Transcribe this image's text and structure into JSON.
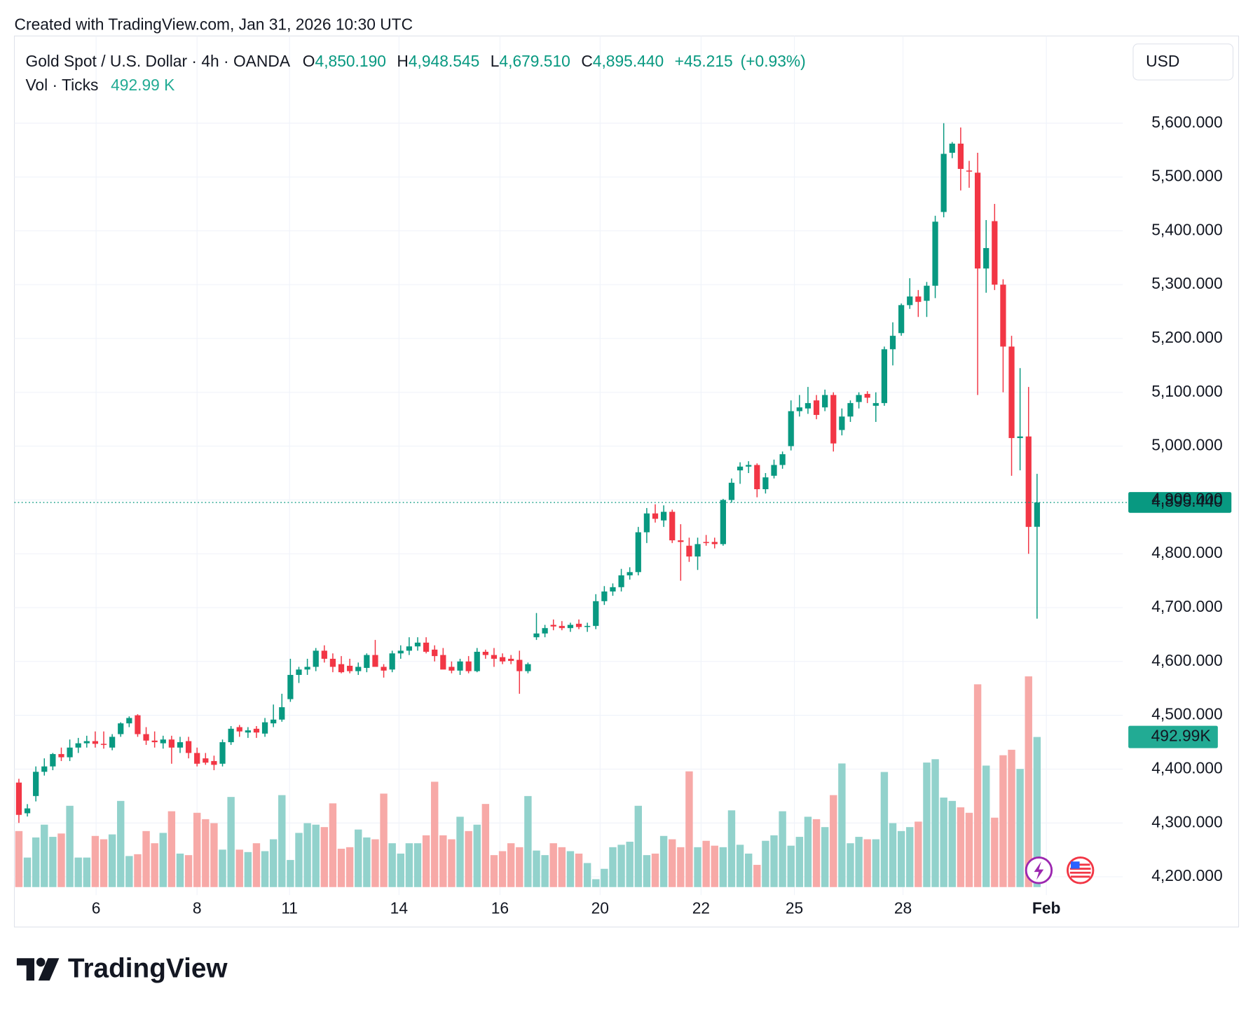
{
  "chart_data": {
    "type": "candlestick",
    "watermark": "Created with TradingView.com, Jan 31, 2026 10:30 UTC",
    "title": "Gold Spot / U.S. Dollar · 4h · OANDA",
    "ohlc_letters": [
      "O",
      "H",
      "L",
      "C"
    ],
    "ohlc_labels": [
      "4,850.190",
      "4,948.545",
      "4,679.510",
      "4,895.440"
    ],
    "change": 45.215,
    "change_label": "+45.215",
    "change_pct": 0.93,
    "change_pct_label": "(+0.93%)",
    "volume_name": "Vol · Ticks",
    "volume_labels": [
      "492.99 K",
      "492.99K"
    ],
    "currency": "USD",
    "brand": "TradingView",
    "last_price_label": "4,895.440",
    "up_color": "#089981",
    "down_color": "#f23645",
    "volume_up_color": "#92d2cc",
    "volume_down_color": "#f7a9a7",
    "grid": true,
    "ylim": [
      4166,
      5762
    ],
    "yticks": [
      {
        "value": 4200,
        "label": "4,200.000"
      },
      {
        "value": 4300,
        "label": "4,300.000"
      },
      {
        "value": 4400,
        "label": "4,400.000"
      },
      {
        "value": 4500,
        "label": "4,500.000"
      },
      {
        "value": 4600,
        "label": "4,600.000"
      },
      {
        "value": 4700,
        "label": "4,700.000"
      },
      {
        "value": 4800,
        "label": "4,800.000"
      },
      {
        "value": 4900,
        "label": "4,900.000"
      },
      {
        "value": 5000,
        "label": "5,000.000"
      },
      {
        "value": 5100,
        "label": "5,100.000"
      },
      {
        "value": 5200,
        "label": "5,200.000"
      },
      {
        "value": 5300,
        "label": "5,300.000"
      },
      {
        "value": 5400,
        "label": "5,400.000"
      },
      {
        "value": 5500,
        "label": "5,500.000"
      },
      {
        "value": 5600,
        "label": "5,600.000"
      }
    ],
    "xlim": [
      -0.53,
      130.1
    ],
    "xticks": [
      {
        "value": 9.1,
        "label": "6"
      },
      {
        "value": 21,
        "label": "8"
      },
      {
        "value": 31.9,
        "label": "11"
      },
      {
        "value": 44.8,
        "label": "14"
      },
      {
        "value": 56.7,
        "label": "16"
      },
      {
        "value": 68.5,
        "label": "20"
      },
      {
        "value": 80.4,
        "label": "22"
      },
      {
        "value": 91.4,
        "label": "25"
      },
      {
        "value": 104.2,
        "label": "28"
      },
      {
        "value": 121.1,
        "label": "Feb"
      }
    ],
    "volume_lim": [
      0,
      1000
    ],
    "candles": [
      [
        4375,
        4382,
        4300,
        4315
      ],
      [
        4318,
        4335,
        4312,
        4327
      ],
      [
        4350,
        4405,
        4340,
        4395
      ],
      [
        4395,
        4420,
        4388,
        4405
      ],
      [
        4405,
        4430,
        4398,
        4428
      ],
      [
        4428,
        4440,
        4415,
        4422
      ],
      [
        4422,
        4455,
        4415,
        4440
      ],
      [
        4440,
        4458,
        4430,
        4448
      ],
      [
        4448,
        4462,
        4440,
        4452
      ],
      [
        4452,
        4470,
        4440,
        4447
      ],
      [
        4447,
        4470,
        4438,
        4445
      ],
      [
        4440,
        4465,
        4435,
        4460
      ],
      [
        4465,
        4487,
        4460,
        4485
      ],
      [
        4485,
        4498,
        4478,
        4495
      ],
      [
        4500,
        4502,
        4460,
        4465
      ],
      [
        4465,
        4478,
        4445,
        4453
      ],
      [
        4453,
        4470,
        4440,
        4450
      ],
      [
        4448,
        4462,
        4438,
        4455
      ],
      [
        4455,
        4462,
        4410,
        4440
      ],
      [
        4440,
        4460,
        4430,
        4450
      ],
      [
        4452,
        4460,
        4420,
        4430
      ],
      [
        4430,
        4440,
        4405,
        4410
      ],
      [
        4420,
        4430,
        4408,
        4412
      ],
      [
        4415,
        4425,
        4398,
        4408
      ],
      [
        4410,
        4455,
        4405,
        4450
      ],
      [
        4450,
        4480,
        4445,
        4475
      ],
      [
        4478,
        4482,
        4460,
        4470
      ],
      [
        4468,
        4478,
        4458,
        4472
      ],
      [
        4475,
        4480,
        4458,
        4468
      ],
      [
        4466,
        4495,
        4460,
        4487
      ],
      [
        4485,
        4520,
        4478,
        4492
      ],
      [
        4492,
        4540,
        4488,
        4515
      ],
      [
        4530,
        4605,
        4525,
        4575
      ],
      [
        4575,
        4590,
        4560,
        4585
      ],
      [
        4585,
        4605,
        4575,
        4590
      ],
      [
        4590,
        4625,
        4582,
        4620
      ],
      [
        4620,
        4630,
        4598,
        4605
      ],
      [
        4605,
        4615,
        4580,
        4590
      ],
      [
        4595,
        4610,
        4578,
        4580
      ],
      [
        4592,
        4605,
        4578,
        4582
      ],
      [
        4582,
        4598,
        4575,
        4590
      ],
      [
        4588,
        4615,
        4580,
        4612
      ],
      [
        4612,
        4640,
        4590,
        4590
      ],
      [
        4590,
        4595,
        4570,
        4583
      ],
      [
        4585,
        4620,
        4580,
        4615
      ],
      [
        4615,
        4630,
        4605,
        4620
      ],
      [
        4620,
        4645,
        4612,
        4628
      ],
      [
        4628,
        4645,
        4620,
        4635
      ],
      [
        4635,
        4645,
        4615,
        4618
      ],
      [
        4622,
        4630,
        4600,
        4610
      ],
      [
        4612,
        4625,
        4588,
        4585
      ],
      [
        4590,
        4600,
        4578,
        4583
      ],
      [
        4583,
        4605,
        4575,
        4600
      ],
      [
        4600,
        4610,
        4578,
        4582
      ],
      [
        4582,
        4625,
        4580,
        4618
      ],
      [
        4618,
        4622,
        4605,
        4612
      ],
      [
        4612,
        4625,
        4590,
        4605
      ],
      [
        4608,
        4615,
        4595,
        4600
      ],
      [
        4605,
        4612,
        4595,
        4601
      ],
      [
        4603,
        4620,
        4540,
        4582
      ],
      [
        4582,
        4598,
        4578,
        4595
      ],
      [
        4645,
        4690,
        4640,
        4652
      ],
      [
        4652,
        4668,
        4645,
        4662
      ],
      [
        4668,
        4678,
        4658,
        4665
      ],
      [
        4666,
        4675,
        4658,
        4662
      ],
      [
        4662,
        4672,
        4655,
        4668
      ],
      [
        4670,
        4678,
        4660,
        4664
      ],
      [
        4664,
        4672,
        4655,
        4666
      ],
      [
        4666,
        4725,
        4660,
        4712
      ],
      [
        4712,
        4740,
        4705,
        4730
      ],
      [
        4730,
        4745,
        4722,
        4738
      ],
      [
        4738,
        4772,
        4730,
        4760
      ],
      [
        4760,
        4775,
        4752,
        4766
      ],
      [
        4766,
        4850,
        4760,
        4840
      ],
      [
        4840,
        4885,
        4820,
        4875
      ],
      [
        4875,
        4892,
        4858,
        4865
      ],
      [
        4862,
        4890,
        4850,
        4878
      ],
      [
        4878,
        4882,
        4820,
        4825
      ],
      [
        4825,
        4855,
        4750,
        4822
      ],
      [
        4815,
        4830,
        4785,
        4795
      ],
      [
        4795,
        4830,
        4770,
        4818
      ],
      [
        4822,
        4835,
        4815,
        4820
      ],
      [
        4822,
        4830,
        4810,
        4818
      ],
      [
        4818,
        4902,
        4815,
        4900
      ],
      [
        4900,
        4940,
        4895,
        4932
      ],
      [
        4955,
        4970,
        4930,
        4962
      ],
      [
        4962,
        4972,
        4950,
        4965
      ],
      [
        4965,
        4968,
        4905,
        4920
      ],
      [
        4920,
        4950,
        4912,
        4942
      ],
      [
        4945,
        4975,
        4940,
        4965
      ],
      [
        4965,
        4990,
        4958,
        4985
      ],
      [
        5000,
        5085,
        4992,
        5065
      ],
      [
        5065,
        5095,
        5055,
        5072
      ],
      [
        5070,
        5110,
        5060,
        5080
      ],
      [
        5085,
        5095,
        5050,
        5058
      ],
      [
        5072,
        5105,
        5065,
        5095
      ],
      [
        5095,
        5100,
        4990,
        5005
      ],
      [
        5030,
        5070,
        5020,
        5055
      ],
      [
        5055,
        5085,
        5045,
        5080
      ],
      [
        5082,
        5100,
        5070,
        5095
      ],
      [
        5097,
        5102,
        5080,
        5090
      ],
      [
        5075,
        5100,
        5045,
        5080
      ],
      [
        5080,
        5185,
        5075,
        5180
      ],
      [
        5180,
        5230,
        5150,
        5205
      ],
      [
        5210,
        5265,
        5205,
        5262
      ],
      [
        5262,
        5312,
        5255,
        5278
      ],
      [
        5278,
        5290,
        5240,
        5268
      ],
      [
        5270,
        5305,
        5240,
        5298
      ],
      [
        5298,
        5428,
        5275,
        5417
      ],
      [
        5435,
        5600,
        5425,
        5543
      ],
      [
        5545,
        5565,
        5535,
        5562
      ],
      [
        5562,
        5592,
        5475,
        5515
      ],
      [
        5512,
        5530,
        5480,
        5510
      ],
      [
        5508,
        5545,
        5095,
        5330
      ],
      [
        5330,
        5420,
        5285,
        5368
      ],
      [
        5418,
        5450,
        5290,
        5300
      ],
      [
        5300,
        5310,
        5100,
        5185
      ],
      [
        5185,
        5205,
        4945,
        5015
      ],
      [
        5015,
        5145,
        4955,
        5018
      ],
      [
        5018,
        5110,
        4800,
        4850
      ],
      [
        4850.19,
        4948.545,
        4679.51,
        4895.44
      ]
    ],
    "volume": [
      184,
      97,
      163,
      205,
      165,
      176,
      267,
      97,
      97,
      168,
      157,
      173,
      283,
      102,
      108,
      184,
      144,
      178,
      249,
      110,
      105,
      244,
      223,
      210,
      123,
      296,
      123,
      115,
      144,
      118,
      157,
      302,
      89,
      178,
      210,
      205,
      197,
      275,
      126,
      131,
      189,
      163,
      157,
      307,
      144,
      110,
      144,
      144,
      170,
      346,
      170,
      157,
      231,
      184,
      205,
      273,
      105,
      118,
      144,
      131,
      299,
      120,
      105,
      144,
      131,
      118,
      110,
      79,
      26,
      60,
      131,
      139,
      149,
      267,
      105,
      110,
      168,
      157,
      131,
      380,
      131,
      152,
      136,
      131,
      252,
      139,
      110,
      73,
      152,
      170,
      249,
      136,
      165,
      231,
      223,
      197,
      302,
      406,
      144,
      165,
      157,
      157,
      378,
      210,
      184,
      197,
      215,
      409,
      420,
      294,
      283,
      262,
      244,
      666,
      399,
      228,
      433,
      451,
      388,
      692,
      492.99
    ]
  }
}
